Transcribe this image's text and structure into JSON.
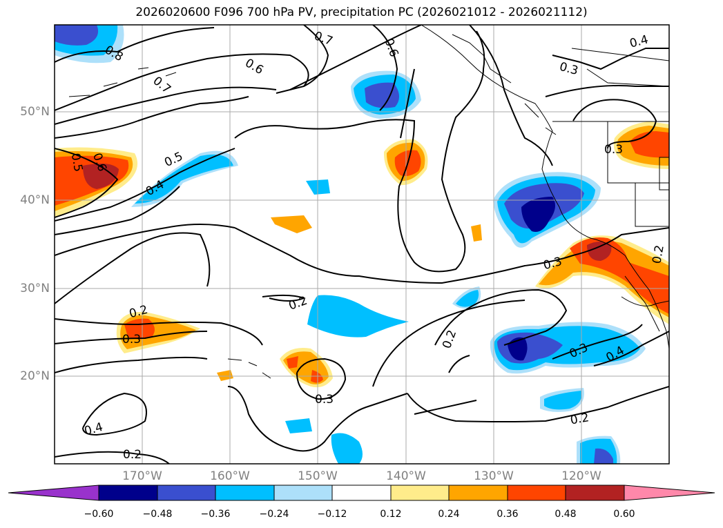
{
  "title": "2026020600 F096 700 hPa PV, precipitation PC (2026021012 - 2026021112)",
  "map": {
    "lat_labels": [
      "50°N",
      "40°N",
      "30°N",
      "20°N"
    ],
    "lon_labels": [
      "170°W",
      "160°W",
      "150°W",
      "140°W",
      "130°W",
      "120°W"
    ],
    "contour_labels": [
      {
        "id": "c1",
        "text": "0.8"
      },
      {
        "id": "c2",
        "text": "0.7"
      },
      {
        "id": "c3",
        "text": "0.6"
      },
      {
        "id": "c4",
        "text": "0.6"
      },
      {
        "id": "c5",
        "text": "0.4"
      },
      {
        "id": "c6",
        "text": "0.3"
      },
      {
        "id": "c7",
        "text": "0.5"
      },
      {
        "id": "c8",
        "text": "0.4"
      },
      {
        "id": "c9",
        "text": "0.5"
      },
      {
        "id": "c10",
        "text": "0.6"
      },
      {
        "id": "c11",
        "text": "0.3"
      },
      {
        "id": "c12",
        "text": "0.3"
      },
      {
        "id": "c13",
        "text": "0.2"
      },
      {
        "id": "c14",
        "text": "0.2"
      },
      {
        "id": "c15",
        "text": "0.3"
      },
      {
        "id": "c16",
        "text": "0.2"
      },
      {
        "id": "c17",
        "text": "0.3"
      },
      {
        "id": "c18",
        "text": "0.4"
      },
      {
        "id": "c19",
        "text": "0.3"
      },
      {
        "id": "c20",
        "text": "0.4"
      },
      {
        "id": "c21",
        "text": "0.2"
      },
      {
        "id": "c22",
        "text": "0.2"
      },
      {
        "id": "c23",
        "text": "0.2"
      },
      {
        "id": "c24",
        "text": "0.7"
      }
    ]
  },
  "colorbar": {
    "ticks": [
      "−0.60",
      "−0.48",
      "−0.36",
      "−0.24",
      "−0.12",
      "0.12",
      "0.24",
      "0.36",
      "0.48",
      "0.60"
    ],
    "colors": [
      "#9932CC",
      "#00008B",
      "#3A4FCF",
      "#00BFFF",
      "#ADE0FA",
      "#FFFFFF",
      "#FFEC8B",
      "#FFA500",
      "#FF4500",
      "#B22222",
      "#FF88AA"
    ]
  }
}
